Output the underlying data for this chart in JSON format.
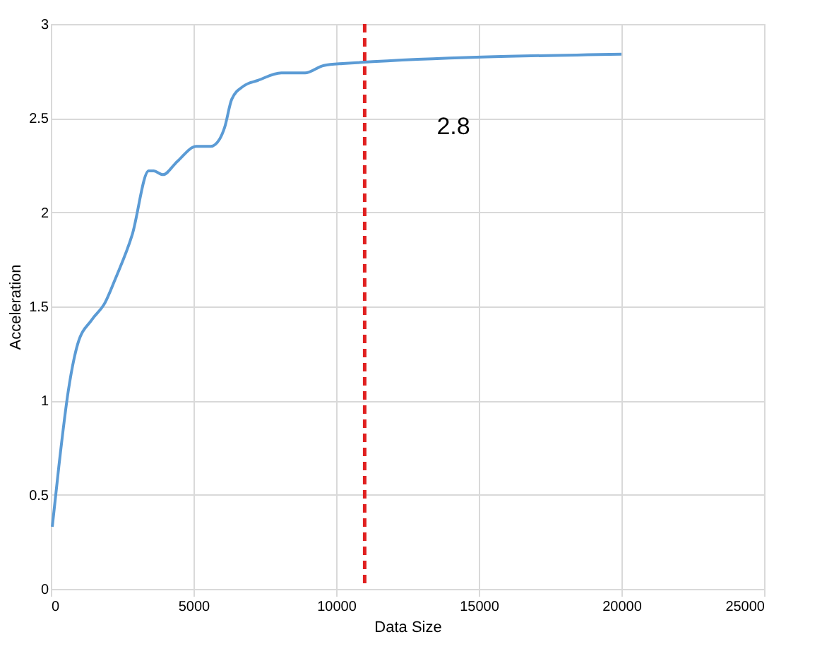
{
  "chart_data": {
    "type": "line",
    "xlabel": "Data Size",
    "ylabel": "Acceleration",
    "x": [
      50,
      280,
      610,
      940,
      1440,
      1900,
      2270,
      2850,
      3430,
      3600,
      3930,
      4430,
      5100,
      5600,
      5920,
      6090,
      6340,
      6750,
      7250,
      8080,
      8910,
      9570,
      10230,
      20000
    ],
    "series": [
      {
        "color": "#5b9bd5",
        "values": [
          0.33,
          0.65,
          1.05,
          1.3,
          1.43,
          1.52,
          1.65,
          1.88,
          2.22,
          2.22,
          2.2,
          2.27,
          2.35,
          2.35,
          2.39,
          2.45,
          2.6,
          2.67,
          2.7,
          2.74,
          2.74,
          2.78,
          2.79,
          2.84
        ]
      }
    ],
    "xlim": [
      0,
      25000
    ],
    "xticks": [
      0,
      5000,
      10000,
      15000,
      20000,
      25000
    ],
    "ylim": [
      0,
      3
    ],
    "yticks": [
      0,
      {
        "value": 0.5,
        "label": "0.5"
      },
      1,
      1.5,
      2,
      2.5,
      3
    ],
    "ref_lines": [
      {
        "axis": "x",
        "value": 11000,
        "color": "#e02020",
        "line_style": "dashed"
      }
    ],
    "annotations": [
      "2.8"
    ],
    "grid": true,
    "marker": "none",
    "line_style": "solid"
  }
}
